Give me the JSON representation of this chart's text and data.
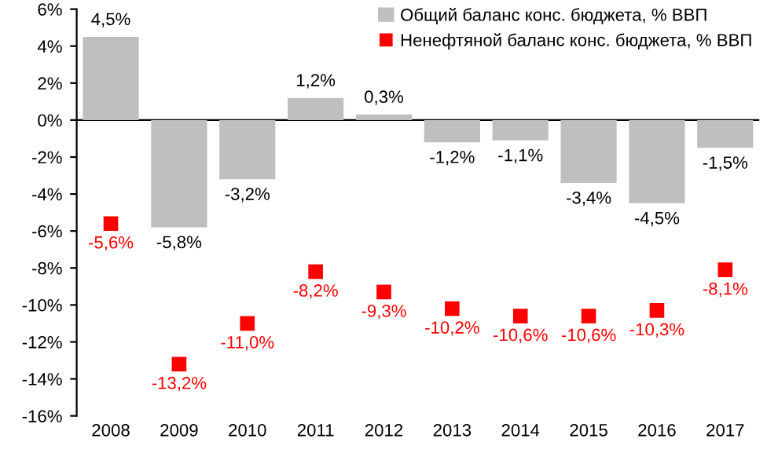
{
  "chart_data": {
    "type": "bar",
    "categories": [
      "2008",
      "2009",
      "2010",
      "2011",
      "2012",
      "2013",
      "2014",
      "2015",
      "2016",
      "2017"
    ],
    "series": [
      {
        "name": "Общий баланс конс. бюджета, % ВВП",
        "color": "#bfbfbf",
        "values": [
          4.5,
          -5.8,
          -3.2,
          1.2,
          0.3,
          -1.2,
          -1.1,
          -3.4,
          -4.5,
          -1.5
        ],
        "value_labels": [
          "4,5%",
          "-5,8%",
          "-3,2%",
          "1,2%",
          "0,3%",
          "-1,2%",
          "-1,1%",
          "-3,4%",
          "-4,5%",
          "-1,5%"
        ]
      },
      {
        "name": "Ненефтяной баланс конс. бюджета, % ВВП",
        "type": "scatter",
        "marker": "square",
        "color": "#ff0000",
        "values": [
          -5.6,
          -13.2,
          -11.0,
          -8.2,
          -9.3,
          -10.2,
          -10.6,
          -10.6,
          -10.3,
          -8.1
        ],
        "value_labels": [
          "-5,6%",
          "-13,2%",
          "-11,0%",
          "-8,2%",
          "-9,3%",
          "-10,2%",
          "-10,6%",
          "-10,6%",
          "-10,3%",
          "-8,1%"
        ]
      }
    ],
    "ylim": [
      -16,
      6
    ],
    "yticks": [
      {
        "value": -16,
        "label": "-16%"
      },
      {
        "value": -14,
        "label": "-14%"
      },
      {
        "value": -12,
        "label": "-12%"
      },
      {
        "value": -10,
        "label": "-10%"
      },
      {
        "value": -8,
        "label": "-8%"
      },
      {
        "value": -6,
        "label": "-6%"
      },
      {
        "value": -4,
        "label": "-4%"
      },
      {
        "value": -2,
        "label": "-2%"
      },
      {
        "value": 0,
        "label": "0%"
      },
      {
        "value": 2,
        "label": "2%"
      },
      {
        "value": 4,
        "label": "4%"
      },
      {
        "value": 6,
        "label": "6%"
      }
    ],
    "legend": "top right"
  }
}
